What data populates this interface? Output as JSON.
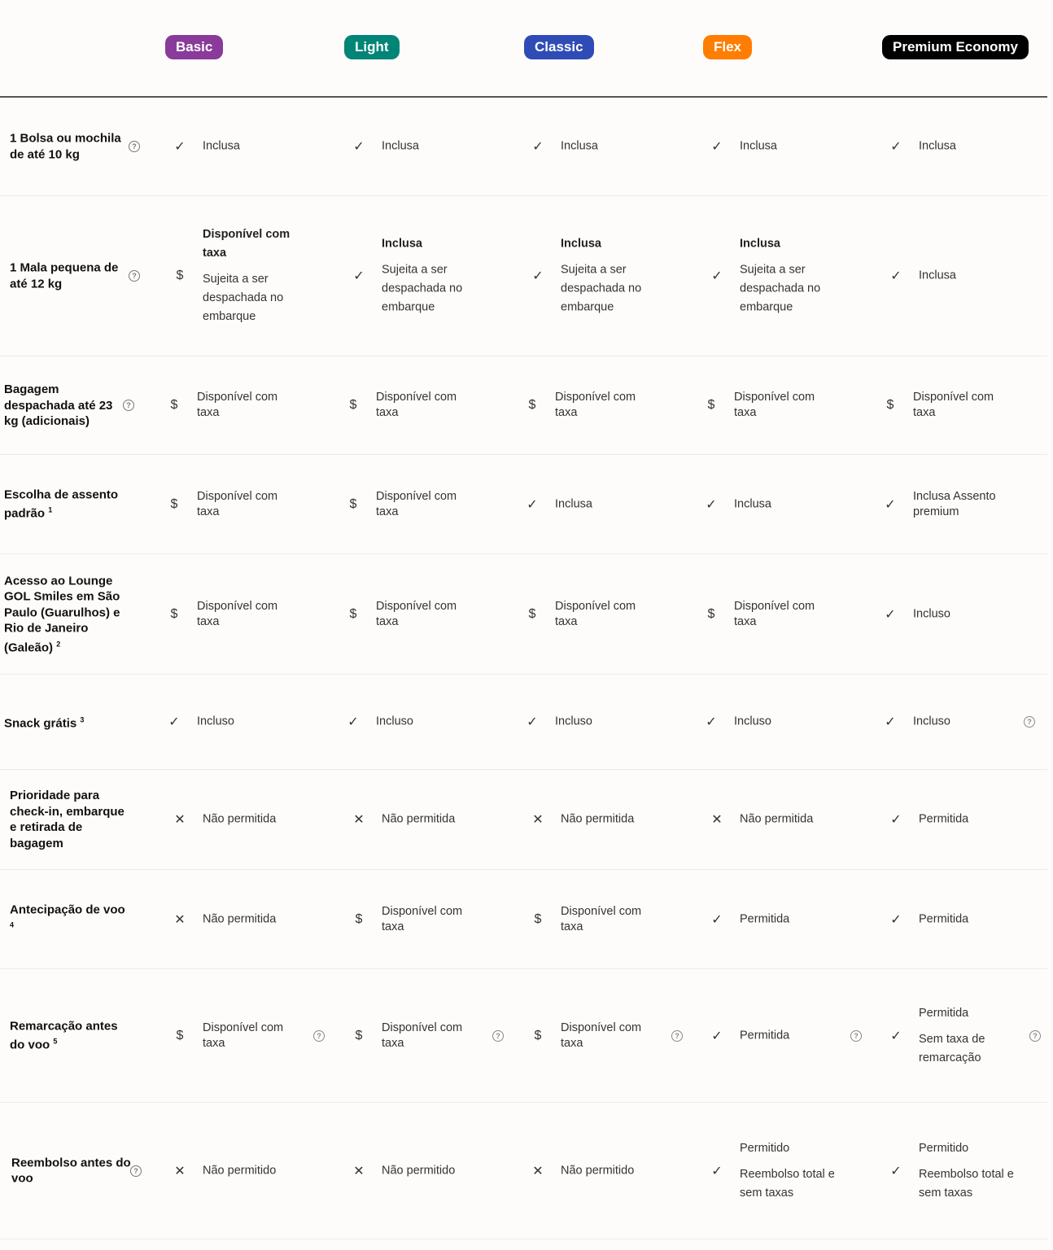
{
  "plans": [
    {
      "name": "Basic",
      "color": "#8a3a9a"
    },
    {
      "name": "Light",
      "color": "#008577"
    },
    {
      "name": "Classic",
      "color": "#2f4bb5"
    },
    {
      "name": "Flex",
      "color": "#ff7d00"
    },
    {
      "name": "Premium Economy",
      "color": "#000000"
    }
  ],
  "help_glyph": "?",
  "icons": {
    "check": "✓",
    "dollar": "$",
    "cross": "✕"
  },
  "rows": [
    {
      "label": "1 Bolsa ou mochila de até 10 kg",
      "sup": "",
      "help": true,
      "cells": [
        {
          "icon": "check",
          "lines": [
            "Inclusa"
          ]
        },
        {
          "icon": "check",
          "lines": [
            "Inclusa"
          ]
        },
        {
          "icon": "check",
          "lines": [
            "Inclusa"
          ]
        },
        {
          "icon": "check",
          "lines": [
            "Inclusa"
          ]
        },
        {
          "icon": "check",
          "lines": [
            "Inclusa"
          ]
        }
      ]
    },
    {
      "label": "1 Mala pequena de até 12 kg",
      "sup": "",
      "help": true,
      "tall": true,
      "cells": [
        {
          "icon": "dollar",
          "bold_first": true,
          "lines": [
            "Disponível com taxa",
            "Sujeita a ser despachada no embarque"
          ]
        },
        {
          "icon": "check",
          "bold_first": true,
          "lines": [
            "Inclusa",
            "Sujeita a ser despachada no embarque"
          ]
        },
        {
          "icon": "check",
          "bold_first": true,
          "lines": [
            "Inclusa",
            "Sujeita a ser despachada no embarque"
          ]
        },
        {
          "icon": "check",
          "bold_first": true,
          "lines": [
            "Inclusa",
            "Sujeita a ser despachada no embarque"
          ]
        },
        {
          "icon": "check",
          "lines": [
            "Inclusa"
          ]
        }
      ]
    },
    {
      "label": "Bagagem despachada até 23 kg (adicionais)",
      "sup": "",
      "help": true,
      "cells": [
        {
          "icon": "dollar",
          "lines": [
            "Disponível com taxa"
          ]
        },
        {
          "icon": "dollar",
          "lines": [
            "Disponível com taxa"
          ]
        },
        {
          "icon": "dollar",
          "lines": [
            "Disponível com taxa"
          ]
        },
        {
          "icon": "dollar",
          "lines": [
            "Disponível com taxa"
          ]
        },
        {
          "icon": "dollar",
          "lines": [
            "Disponível com taxa"
          ]
        }
      ]
    },
    {
      "label": "Escolha de assento padrão",
      "sup": "1",
      "help": false,
      "cells": [
        {
          "icon": "dollar",
          "lines": [
            "Disponível com taxa"
          ]
        },
        {
          "icon": "dollar",
          "lines": [
            "Disponível com taxa"
          ]
        },
        {
          "icon": "check",
          "lines": [
            "Inclusa"
          ]
        },
        {
          "icon": "check",
          "lines": [
            "Inclusa"
          ]
        },
        {
          "icon": "check",
          "lines": [
            "Inclusa Assento premium"
          ]
        }
      ]
    },
    {
      "label": "Acesso ao Lounge GOL Smiles em São Paulo (Guarulhos) e Rio de Janeiro (Galeão)",
      "sup": "2",
      "help": false,
      "cells": [
        {
          "icon": "dollar",
          "lines": [
            "Disponível com taxa"
          ]
        },
        {
          "icon": "dollar",
          "lines": [
            "Disponível com taxa"
          ]
        },
        {
          "icon": "dollar",
          "lines": [
            "Disponível com taxa"
          ]
        },
        {
          "icon": "dollar",
          "lines": [
            "Disponível com taxa"
          ]
        },
        {
          "icon": "check",
          "lines": [
            "Incluso"
          ]
        }
      ]
    },
    {
      "label": "Snack grátis",
      "sup": "3",
      "help": false,
      "cells": [
        {
          "icon": "check",
          "lines": [
            "Incluso"
          ]
        },
        {
          "icon": "check",
          "lines": [
            "Incluso"
          ]
        },
        {
          "icon": "check",
          "lines": [
            "Incluso"
          ]
        },
        {
          "icon": "check",
          "lines": [
            "Incluso"
          ]
        },
        {
          "icon": "check",
          "lines": [
            "Incluso"
          ],
          "help": true
        }
      ]
    },
    {
      "label": "Prioridade para check-in, embarque e retirada de bagagem",
      "sup": "",
      "help": false,
      "cells": [
        {
          "icon": "cross",
          "lines": [
            "Não permitida"
          ]
        },
        {
          "icon": "cross",
          "lines": [
            "Não permitida"
          ]
        },
        {
          "icon": "cross",
          "lines": [
            "Não permitida"
          ]
        },
        {
          "icon": "cross",
          "lines": [
            "Não permitida"
          ]
        },
        {
          "icon": "check",
          "lines": [
            "Permitida"
          ]
        }
      ]
    },
    {
      "label": "Antecipação de voo",
      "sup": "4",
      "help": false,
      "cells": [
        {
          "icon": "cross",
          "lines": [
            "Não permitida"
          ]
        },
        {
          "icon": "dollar",
          "lines": [
            "Disponível com taxa"
          ]
        },
        {
          "icon": "dollar",
          "lines": [
            "Disponível com taxa"
          ]
        },
        {
          "icon": "check",
          "lines": [
            "Permitida"
          ]
        },
        {
          "icon": "check",
          "lines": [
            "Permitida"
          ]
        }
      ]
    },
    {
      "label": "Remarcação antes do voo",
      "sup": "5",
      "help": false,
      "cells": [
        {
          "icon": "dollar",
          "lines": [
            "Disponível com taxa"
          ],
          "help": true
        },
        {
          "icon": "dollar",
          "lines": [
            "Disponível com taxa"
          ],
          "help": true
        },
        {
          "icon": "dollar",
          "lines": [
            "Disponível com taxa"
          ],
          "help": true
        },
        {
          "icon": "check",
          "lines": [
            "Permitida"
          ],
          "help": true
        },
        {
          "icon": "check",
          "lines": [
            "Permitida",
            "Sem taxa de remarcação"
          ],
          "help": true,
          "tall": true
        }
      ]
    },
    {
      "label": "Reembolso antes do voo",
      "sup": "",
      "help": true,
      "cells": [
        {
          "icon": "cross",
          "lines": [
            "Não permitido"
          ]
        },
        {
          "icon": "cross",
          "lines": [
            "Não permitido"
          ]
        },
        {
          "icon": "cross",
          "lines": [
            "Não permitido"
          ]
        },
        {
          "icon": "check",
          "lines": [
            "Permitido",
            "Reembolso total e sem taxas"
          ],
          "tall": true
        },
        {
          "icon": "check",
          "lines": [
            "Permitido",
            "Reembolso total e sem taxas"
          ],
          "tall": true
        }
      ]
    }
  ]
}
